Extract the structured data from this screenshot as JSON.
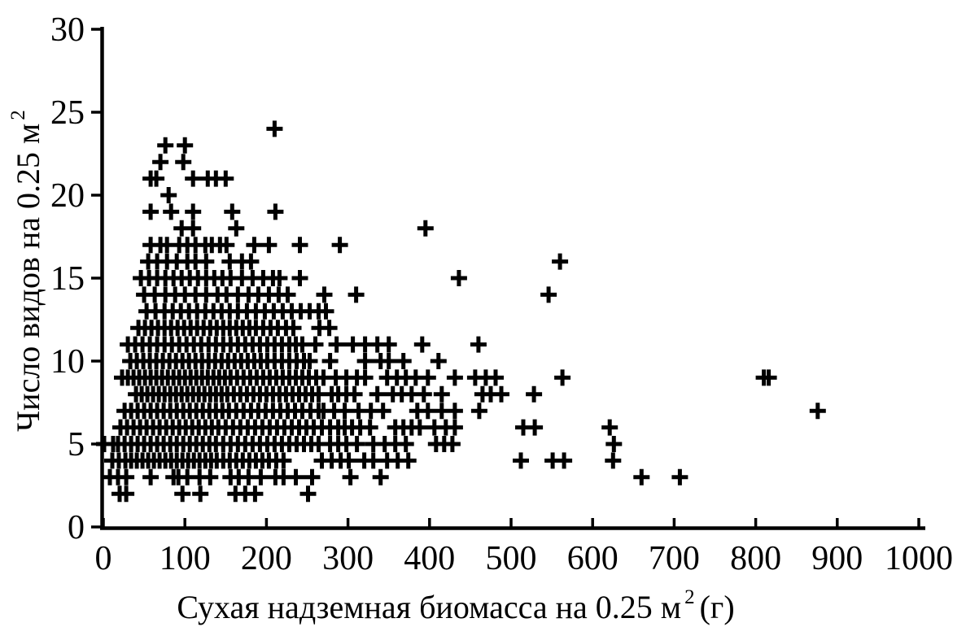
{
  "chart_data": {
    "type": "scatter",
    "title": "",
    "marker": "plus",
    "marker_color": "#000000",
    "background_color": "#ffffff",
    "axis_color": "#000000",
    "grid": false,
    "legend": null,
    "xlabel": {
      "text": "Сухая надземная биомасса на 0.25 м",
      "sup": "2",
      "suffix": "(г)"
    },
    "ylabel": {
      "text": "Число видов на 0.25 м",
      "sup": "2",
      "suffix": ""
    },
    "xlim": [
      0,
      1000
    ],
    "ylim": [
      0,
      30
    ],
    "xticks": [
      0,
      100,
      200,
      300,
      400,
      500,
      600,
      700,
      800,
      900,
      1000
    ],
    "yticks": [
      0,
      5,
      10,
      15,
      20,
      25,
      30
    ],
    "x_axis_unit": "г биомассы на 0.25 м2",
    "y_axis_unit": "число видов на 0.25 м2",
    "rows": [
      {
        "species": 24,
        "biomass": [
          210
        ]
      },
      {
        "species": 23,
        "biomass": [
          76,
          100
        ]
      },
      {
        "species": 22,
        "biomass": [
          70,
          98
        ]
      },
      {
        "species": 21,
        "biomass": [
          58,
          65,
          110,
          128,
          138,
          150
        ]
      },
      {
        "species": 20,
        "biomass": [
          80
        ]
      },
      {
        "species": 19,
        "biomass": [
          58,
          83,
          110,
          158,
          211
        ]
      },
      {
        "species": 18,
        "biomass": [
          96,
          110,
          163,
          395
        ]
      },
      {
        "species": 17,
        "biomass": [
          58,
          70,
          78,
          93,
          103,
          113,
          125,
          133,
          143,
          151,
          185,
          203,
          241,
          290
        ]
      },
      {
        "species": 16,
        "biomass": [
          55,
          66,
          78,
          90,
          103,
          113,
          126,
          155,
          170,
          181,
          560
        ]
      },
      {
        "species": 15,
        "biomass": [
          46,
          56,
          66,
          76,
          86,
          96,
          106,
          116,
          126,
          136,
          146,
          156,
          170,
          183,
          196,
          208,
          216,
          241,
          436
        ]
      },
      {
        "species": 14,
        "biomass": [
          50,
          63,
          76,
          88,
          100,
          113,
          126,
          140,
          151,
          165,
          178,
          190,
          203,
          215,
          226,
          271,
          310,
          546
        ]
      },
      {
        "species": 13,
        "biomass": [
          53,
          64,
          75,
          85,
          95,
          105,
          115,
          125,
          135,
          145,
          155,
          165,
          176,
          187,
          198,
          209,
          220,
          231,
          242,
          253,
          264,
          273
        ]
      },
      {
        "species": 12,
        "biomass": [
          43,
          51,
          59,
          67,
          75,
          83,
          91,
          99,
          107,
          115,
          123,
          131,
          139,
          147,
          155,
          163,
          171,
          179,
          187,
          196,
          205,
          214,
          224,
          233,
          265,
          277
        ]
      },
      {
        "species": 11,
        "biomass": [
          30,
          39,
          48,
          57,
          66,
          75,
          84,
          93,
          102,
          111,
          120,
          129,
          138,
          147,
          156,
          165,
          174,
          183,
          192,
          201,
          210,
          219,
          228,
          236,
          244,
          260,
          286,
          306,
          321,
          336,
          350,
          391,
          460
        ]
      },
      {
        "species": 10,
        "biomass": [
          33,
          41,
          49,
          57,
          65,
          73,
          81,
          89,
          97,
          105,
          113,
          121,
          129,
          137,
          145,
          153,
          161,
          169,
          177,
          185,
          193,
          201,
          210,
          219,
          228,
          237,
          246,
          253,
          278,
          321,
          340,
          350,
          368,
          411
        ]
      },
      {
        "species": 9,
        "biomass": [
          23,
          30,
          37,
          44,
          51,
          58,
          65,
          72,
          79,
          86,
          93,
          100,
          107,
          114,
          121,
          128,
          135,
          142,
          149,
          156,
          164,
          172,
          180,
          188,
          196,
          204,
          212,
          220,
          228,
          236,
          244,
          252,
          261,
          270,
          285,
          298,
          311,
          321,
          348,
          360,
          371,
          383,
          398,
          431,
          456,
          469,
          481,
          563,
          810,
          816
        ]
      },
      {
        "species": 8,
        "biomass": [
          40,
          47,
          54,
          61,
          68,
          75,
          82,
          89,
          96,
          103,
          110,
          117,
          124,
          131,
          138,
          145,
          152,
          160,
          168,
          176,
          184,
          192,
          200,
          208,
          216,
          224,
          232,
          240,
          248,
          256,
          264,
          280,
          288,
          298,
          308,
          336,
          355,
          366,
          378,
          393,
          415,
          465,
          475,
          488,
          528
        ]
      },
      {
        "species": 7,
        "biomass": [
          26,
          34,
          42,
          50,
          58,
          66,
          74,
          82,
          90,
          98,
          106,
          114,
          122,
          130,
          138,
          146,
          154,
          163,
          172,
          181,
          190,
          199,
          208,
          217,
          226,
          235,
          244,
          254,
          264,
          270,
          283,
          296,
          313,
          328,
          343,
          385,
          398,
          415,
          431,
          461,
          876
        ]
      },
      {
        "species": 6,
        "biomass": [
          21,
          29,
          37,
          45,
          53,
          61,
          69,
          77,
          85,
          93,
          101,
          109,
          117,
          125,
          133,
          141,
          150,
          159,
          168,
          177,
          186,
          195,
          204,
          213,
          222,
          231,
          240,
          249,
          258,
          268,
          278,
          288,
          296,
          305,
          315,
          327,
          358,
          368,
          378,
          388,
          406,
          420,
          431,
          515,
          529,
          621
        ]
      },
      {
        "species": 5,
        "biomass": [
          1,
          12,
          18,
          26,
          34,
          42,
          50,
          58,
          66,
          74,
          82,
          90,
          98,
          106,
          114,
          122,
          130,
          138,
          147,
          156,
          165,
          174,
          183,
          192,
          201,
          210,
          219,
          228,
          237,
          246,
          255,
          264,
          278,
          288,
          298,
          311,
          331,
          345,
          358,
          371,
          408,
          418,
          428,
          626
        ]
      },
      {
        "species": 4,
        "biomass": [
          11,
          19,
          27,
          34,
          41,
          48,
          55,
          62,
          69,
          76,
          83,
          90,
          97,
          104,
          111,
          118,
          125,
          132,
          139,
          147,
          155,
          163,
          171,
          179,
          187,
          195,
          203,
          212,
          221,
          268,
          280,
          291,
          301,
          320,
          331,
          348,
          361,
          374,
          512,
          551,
          565,
          625
        ]
      },
      {
        "species": 3,
        "biomass": [
          8,
          18,
          28,
          58,
          86,
          92,
          103,
          118,
          131,
          156,
          166,
          178,
          193,
          211,
          221,
          236,
          256,
          303,
          340,
          660,
          707
        ]
      },
      {
        "species": 2,
        "biomass": [
          20,
          28,
          97,
          119,
          162,
          174,
          186,
          251
        ]
      }
    ]
  }
}
